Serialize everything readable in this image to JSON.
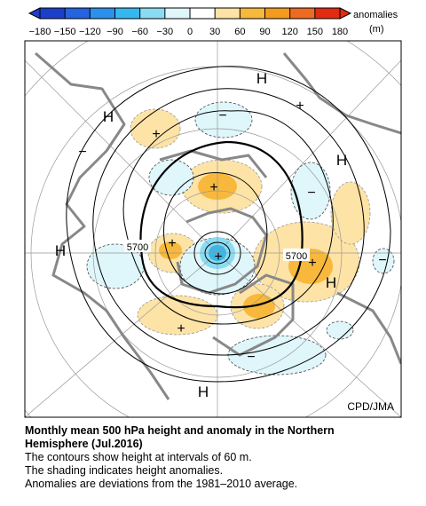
{
  "colorbar": {
    "ticks": [
      "−180",
      "−150",
      "−120",
      "−90",
      "−60",
      "−30",
      "0",
      "30",
      "60",
      "90",
      "120",
      "150",
      "180"
    ],
    "colors": [
      "#1c3fc9",
      "#2464e0",
      "#2c90ee",
      "#35b8ef",
      "#8adcf2",
      "#dff6fb",
      "#ffffff",
      "#fde3a6",
      "#f8b83c",
      "#f39b1c",
      "#ee6b22",
      "#e12c12"
    ],
    "title": "anomalies",
    "unit": "(m)"
  },
  "map": {
    "labels": [
      "H",
      "H",
      "H",
      "H",
      "H",
      "H",
      "+",
      "+",
      "+",
      "+",
      "+",
      "+",
      "+",
      "−",
      "−",
      "−",
      "−",
      "−",
      "5700",
      "5700"
    ],
    "credit": "CPD/JMA"
  },
  "caption": {
    "title_lines": [
      "Monthly mean 500 hPa height and anomaly in the Northern",
      "Hemisphere (Jul.2016)"
    ],
    "lines": [
      "The contours show height at intervals of 60 m.",
      "The shading indicates height anomalies.",
      "Anomalies are deviations from the 1981–2010 average."
    ]
  }
}
